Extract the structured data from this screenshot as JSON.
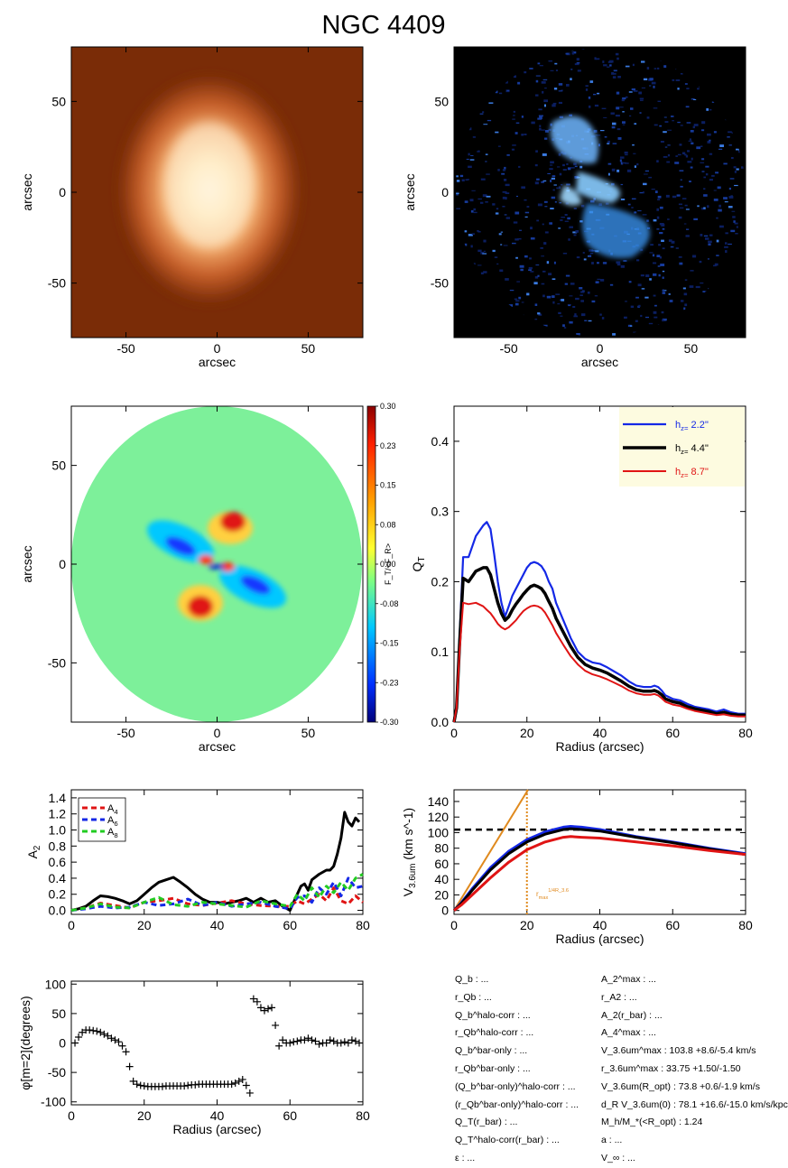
{
  "title": "NGC 4409",
  "colors": {
    "blue": "#1428e6",
    "black": "#000000",
    "red": "#e01414",
    "green": "#22cc22",
    "orange": "#e08a1e",
    "legend_bg": "#fdfbe0",
    "orange_panel": "#7a2c07",
    "blue_panel": "#000000"
  },
  "chart_data": [
    {
      "type": "heatmap",
      "panel": "image-3.6um",
      "xlabel": "arcsec",
      "ylabel": "arcsec",
      "xlim": [
        -80,
        80
      ],
      "ylim": [
        -80,
        80
      ],
      "xticks": [
        "-50",
        "0",
        "50"
      ],
      "yticks": [
        "50",
        "0",
        "-50"
      ],
      "colormap": "orange"
    },
    {
      "type": "heatmap",
      "panel": "image-residual",
      "xlabel": "arcsec",
      "ylabel": "arcsec",
      "xlim": [
        -80,
        80
      ],
      "ylim": [
        -80,
        80
      ],
      "xticks": [
        "-50",
        "0",
        "50"
      ],
      "yticks": [
        "50",
        "0",
        "-50"
      ],
      "colormap": "blue"
    },
    {
      "type": "heatmap",
      "panel": "force-ratio-map",
      "xlabel": "arcsec",
      "ylabel": "arcsec",
      "xlim": [
        -80,
        80
      ],
      "ylim": [
        -80,
        80
      ],
      "xticks": [
        "-50",
        "0",
        "50"
      ],
      "yticks": [
        "50",
        "0",
        "-50"
      ],
      "colorbar_label": "F_T/<F_R>",
      "colorbar_ticks": [
        "0.30",
        "0.23",
        "0.15",
        "0.08",
        "0.00",
        "-0.08",
        "-0.15",
        "-0.23",
        "-0.30"
      ]
    },
    {
      "type": "line",
      "panel": "qt-profile",
      "xlabel": "Radius (arcsec)",
      "ylabel": "Q_T",
      "xlim": [
        0,
        80
      ],
      "ylim": [
        0,
        0.45
      ],
      "xticks": [
        "0",
        "20",
        "40",
        "60",
        "80"
      ],
      "yticks": [
        "0.0",
        "0.1",
        "0.2",
        "0.3",
        "0.4"
      ],
      "legend": "top-right",
      "series": [
        {
          "name": "h_z=  2.2''",
          "color": "#1428e6",
          "x": [
            0,
            0.7,
            1.5,
            2.5,
            4,
            6,
            8,
            9,
            10,
            11,
            12,
            13,
            14,
            15,
            16,
            17,
            18,
            19,
            20,
            21,
            22,
            23,
            24,
            25,
            26,
            27,
            28,
            30,
            32,
            34,
            36,
            38,
            40,
            42,
            44,
            46,
            48,
            50,
            52,
            54,
            55,
            56,
            57,
            58,
            60,
            62,
            64,
            66,
            68,
            70,
            72,
            74,
            76,
            78,
            80
          ],
          "y": [
            0,
            0.02,
            0.12,
            0.235,
            0.235,
            0.265,
            0.28,
            0.285,
            0.275,
            0.24,
            0.2,
            0.17,
            0.15,
            0.165,
            0.18,
            0.19,
            0.2,
            0.21,
            0.22,
            0.226,
            0.228,
            0.226,
            0.222,
            0.214,
            0.2,
            0.19,
            0.17,
            0.145,
            0.12,
            0.1,
            0.09,
            0.085,
            0.083,
            0.078,
            0.072,
            0.066,
            0.058,
            0.052,
            0.05,
            0.05,
            0.052,
            0.05,
            0.045,
            0.038,
            0.033,
            0.031,
            0.026,
            0.022,
            0.02,
            0.018,
            0.015,
            0.018,
            0.014,
            0.012,
            0.012
          ]
        },
        {
          "name": "h_z=  4.4''",
          "color": "#000000",
          "x": [
            0,
            0.7,
            1.5,
            2.5,
            4,
            6,
            8,
            9,
            10,
            11,
            12,
            13,
            14,
            15,
            16,
            17,
            18,
            19,
            20,
            21,
            22,
            23,
            24,
            25,
            26,
            27,
            28,
            30,
            32,
            34,
            36,
            38,
            40,
            42,
            44,
            46,
            48,
            50,
            52,
            54,
            55,
            56,
            57,
            58,
            60,
            62,
            64,
            66,
            68,
            70,
            72,
            74,
            76,
            78,
            80
          ],
          "y": [
            0,
            0.02,
            0.11,
            0.205,
            0.2,
            0.215,
            0.22,
            0.22,
            0.21,
            0.19,
            0.17,
            0.155,
            0.145,
            0.15,
            0.16,
            0.168,
            0.175,
            0.182,
            0.188,
            0.193,
            0.195,
            0.193,
            0.19,
            0.183,
            0.172,
            0.162,
            0.148,
            0.128,
            0.108,
            0.092,
            0.082,
            0.077,
            0.074,
            0.07,
            0.064,
            0.058,
            0.051,
            0.046,
            0.044,
            0.044,
            0.045,
            0.043,
            0.039,
            0.033,
            0.029,
            0.027,
            0.022,
            0.019,
            0.017,
            0.015,
            0.012,
            0.014,
            0.011,
            0.01,
            0.01
          ]
        },
        {
          "name": "h_z=  8.7''",
          "color": "#e01414",
          "x": [
            0,
            0.7,
            1.5,
            2.5,
            4,
            6,
            8,
            9,
            10,
            11,
            12,
            13,
            14,
            15,
            16,
            17,
            18,
            19,
            20,
            21,
            22,
            23,
            24,
            25,
            26,
            27,
            28,
            30,
            32,
            34,
            36,
            38,
            40,
            42,
            44,
            46,
            48,
            50,
            52,
            54,
            55,
            56,
            57,
            58,
            60,
            62,
            64,
            66,
            68,
            70,
            72,
            74,
            76,
            78,
            80
          ],
          "y": [
            0,
            0.02,
            0.1,
            0.17,
            0.168,
            0.17,
            0.165,
            0.16,
            0.155,
            0.148,
            0.14,
            0.135,
            0.132,
            0.135,
            0.14,
            0.145,
            0.152,
            0.158,
            0.162,
            0.165,
            0.166,
            0.165,
            0.162,
            0.156,
            0.147,
            0.138,
            0.127,
            0.11,
            0.094,
            0.082,
            0.073,
            0.068,
            0.065,
            0.061,
            0.056,
            0.051,
            0.045,
            0.041,
            0.039,
            0.039,
            0.04,
            0.038,
            0.034,
            0.029,
            0.025,
            0.023,
            0.019,
            0.016,
            0.014,
            0.012,
            0.01,
            0.011,
            0.009,
            0.008,
            0.008
          ]
        }
      ]
    },
    {
      "type": "line",
      "panel": "fourier-amplitudes",
      "xlabel": "",
      "ylabel": "A_2",
      "xlim": [
        0,
        80
      ],
      "ylim": [
        -0.05,
        1.5
      ],
      "xticks": [
        "0",
        "20",
        "40",
        "60",
        "80"
      ],
      "yticks": [
        "0.0",
        "0.2",
        "0.4",
        "0.6",
        "0.8",
        "1.0",
        "1.2",
        "1.4"
      ],
      "legend": "top-left",
      "series": [
        {
          "name": "",
          "color": "#000000",
          "dash": "solid",
          "x": [
            0,
            2,
            4,
            6,
            8,
            10,
            12,
            14,
            16,
            18,
            20,
            22,
            24,
            26,
            28,
            30,
            32,
            34,
            36,
            38,
            40,
            42,
            44,
            46,
            48,
            50,
            52,
            54,
            56,
            58,
            60,
            61,
            62,
            63,
            64,
            65,
            66,
            68,
            70,
            71,
            72,
            73,
            74,
            75,
            76,
            77,
            78,
            79
          ],
          "y": [
            0,
            0.02,
            0.05,
            0.12,
            0.18,
            0.17,
            0.15,
            0.12,
            0.08,
            0.12,
            0.2,
            0.28,
            0.35,
            0.38,
            0.41,
            0.35,
            0.28,
            0.2,
            0.14,
            0.1,
            0.1,
            0.08,
            0.1,
            0.12,
            0.15,
            0.1,
            0.15,
            0.1,
            0.12,
            0.05,
            0.0,
            0.1,
            0.2,
            0.3,
            0.33,
            0.25,
            0.38,
            0.45,
            0.5,
            0.5,
            0.55,
            0.7,
            0.9,
            1.22,
            1.1,
            1.05,
            1.15,
            1.1
          ]
        },
        {
          "name": "A_4",
          "color": "#e01414",
          "dash": "dashed",
          "x": [
            0,
            4,
            8,
            12,
            16,
            20,
            24,
            28,
            32,
            36,
            40,
            44,
            48,
            52,
            56,
            60,
            62,
            64,
            66,
            68,
            70,
            72,
            74,
            76,
            78,
            80
          ],
          "y": [
            0,
            0.03,
            0.09,
            0.06,
            0.03,
            0.1,
            0.12,
            0.15,
            0.08,
            0.06,
            0.09,
            0.12,
            0.08,
            0.06,
            0.05,
            0.05,
            0.12,
            0.08,
            0.14,
            0.2,
            0.12,
            0.28,
            0.12,
            0.08,
            0.18,
            0.1
          ]
        },
        {
          "name": "A_6",
          "color": "#1428e6",
          "dash": "dashed",
          "x": [
            0,
            4,
            8,
            12,
            16,
            20,
            24,
            28,
            32,
            36,
            40,
            44,
            48,
            52,
            56,
            60,
            62,
            64,
            66,
            68,
            70,
            72,
            74,
            76,
            78,
            80
          ],
          "y": [
            0,
            0.02,
            0.05,
            0.03,
            0.04,
            0.1,
            0.06,
            0.08,
            0.14,
            0.06,
            0.1,
            0.05,
            0.08,
            0.1,
            0.05,
            0.02,
            0.16,
            0.18,
            0.1,
            0.28,
            0.2,
            0.35,
            0.18,
            0.4,
            0.28,
            0.3
          ]
        },
        {
          "name": "A_8",
          "color": "#22cc22",
          "dash": "dashed",
          "x": [
            0,
            4,
            8,
            12,
            16,
            20,
            24,
            28,
            32,
            36,
            40,
            44,
            48,
            52,
            56,
            60,
            62,
            64,
            66,
            68,
            70,
            72,
            74,
            76,
            78,
            80
          ],
          "y": [
            0,
            0.03,
            0.08,
            0.04,
            0.03,
            0.1,
            0.16,
            0.07,
            0.05,
            0.1,
            0.08,
            0.06,
            0.04,
            0.12,
            0.08,
            0.05,
            0.2,
            0.12,
            0.28,
            0.16,
            0.3,
            0.22,
            0.35,
            0.25,
            0.4,
            0.45
          ]
        }
      ]
    },
    {
      "type": "line",
      "panel": "rotation-curve",
      "xlabel": "Radius (arcsec)",
      "ylabel": "V_3.6um (km s^-1)",
      "xlim": [
        0,
        80
      ],
      "ylim": [
        -5,
        155
      ],
      "xticks": [
        "0",
        "20",
        "40",
        "60",
        "80"
      ],
      "yticks": [
        "0",
        "20",
        "40",
        "60",
        "80",
        "100",
        "120",
        "140"
      ],
      "annotation": "r_max^1/4R_3.6",
      "hline": 103.8,
      "vline": 20,
      "series": [
        {
          "name": "",
          "color": "#e08a1e",
          "x": [
            0,
            20.3
          ],
          "y": [
            0,
            155
          ]
        },
        {
          "name": "",
          "color": "#1428e6",
          "x": [
            0,
            2,
            5,
            10,
            15,
            20,
            25,
            30,
            32,
            35,
            40,
            50,
            60,
            70,
            80
          ],
          "y": [
            0,
            10,
            28,
            55,
            76,
            91,
            101,
            107,
            108,
            107,
            104,
            95,
            88,
            80,
            73
          ]
        },
        {
          "name": "",
          "color": "#000000",
          "x": [
            0,
            2,
            5,
            10,
            15,
            20,
            25,
            30,
            32,
            35,
            40,
            50,
            60,
            70,
            80
          ],
          "y": [
            0,
            9,
            26,
            52,
            73,
            88,
            98,
            104,
            105,
            104,
            102,
            94,
            87,
            79,
            72
          ]
        },
        {
          "name": "",
          "color": "#e01414",
          "x": [
            0,
            2,
            5,
            10,
            15,
            20,
            25,
            30,
            32,
            35,
            40,
            50,
            60,
            70,
            80
          ],
          "y": [
            0,
            7,
            20,
            42,
            62,
            78,
            88,
            94,
            95,
            94,
            93,
            88,
            83,
            77,
            72
          ]
        }
      ]
    },
    {
      "type": "scatter",
      "panel": "phase-angle",
      "xlabel": "Radius (arcsec)",
      "ylabel": "φ[m=2](degrees)",
      "xlim": [
        0,
        80
      ],
      "ylim": [
        -105,
        105
      ],
      "xticks": [
        "0",
        "20",
        "40",
        "60",
        "80"
      ],
      "yticks": [
        "100",
        "50",
        "0",
        "-50",
        "-100"
      ],
      "x": [
        1,
        2,
        3,
        4,
        5,
        6,
        7,
        8,
        9,
        10,
        11,
        12,
        13,
        14,
        15,
        16,
        17,
        18,
        19,
        20,
        21,
        22,
        23,
        24,
        25,
        26,
        27,
        28,
        29,
        30,
        31,
        32,
        33,
        34,
        35,
        36,
        37,
        38,
        39,
        40,
        41,
        42,
        43,
        44,
        45,
        46,
        47,
        48,
        49,
        50,
        51,
        52,
        53,
        54,
        55,
        56,
        57,
        58,
        59,
        60,
        61,
        62,
        63,
        64,
        65,
        66,
        67,
        68,
        69,
        70,
        71,
        72,
        73,
        74,
        75,
        76,
        77,
        78,
        79
      ],
      "y": [
        0,
        10,
        18,
        22,
        22,
        21,
        20,
        18,
        15,
        12,
        8,
        5,
        2,
        -5,
        -15,
        -40,
        -65,
        -70,
        -72,
        -73,
        -74,
        -74,
        -74,
        -74,
        -74,
        -73,
        -73,
        -73,
        -73,
        -73,
        -73,
        -72,
        -71,
        -71,
        -70,
        -70,
        -70,
        -70,
        -70,
        -70,
        -70,
        -70,
        -70,
        -70,
        -68,
        -65,
        -62,
        -72,
        -85,
        75,
        70,
        60,
        55,
        58,
        60,
        30,
        -5,
        5,
        0,
        0,
        2,
        3,
        5,
        5,
        8,
        5,
        3,
        -2,
        0,
        0,
        5,
        3,
        0,
        0,
        2,
        0,
        5,
        3,
        0
      ]
    }
  ],
  "params_left": [
    {
      "label": "Q_b : ..."
    },
    {
      "label": "r_Qb : ..."
    },
    {
      "label": "Q_b^halo-corr : ..."
    },
    {
      "label": "r_Qb^halo-corr : ..."
    },
    {
      "label": "Q_b^bar-only : ..."
    },
    {
      "label": "r_Qb^bar-only : ..."
    },
    {
      "label": "(Q_b^bar-only)^halo-corr : ..."
    },
    {
      "label": "(r_Qb^bar-only)^halo-corr : ..."
    },
    {
      "label": "Q_T(r_bar) : ..."
    },
    {
      "label": "Q_T^halo-corr(r_bar) : ..."
    },
    {
      "label": "ε : ..."
    }
  ],
  "params_right": [
    {
      "label": "A_2^max : ..."
    },
    {
      "label": "r_A2 : ..."
    },
    {
      "label": "A_2(r_bar) : ..."
    },
    {
      "label": "A_4^max : ..."
    },
    {
      "label": "V_3.6um^max :  103.8 +8.6/-5.4 km/s"
    },
    {
      "label": "r_3.6um^max :  33.75 +1.50/-1.50"
    },
    {
      "label": "V_3.6um(R_opt) :  73.8 +0.6/-1.9 km/s"
    },
    {
      "label": "d_R V_3.6um(0) :  78.1 +16.6/-15.0 km/s/kpc"
    },
    {
      "label": "M_h/M_*(<R_opt) :  1.24"
    },
    {
      "label": "a : ..."
    },
    {
      "label": "V_∞ : ..."
    }
  ]
}
